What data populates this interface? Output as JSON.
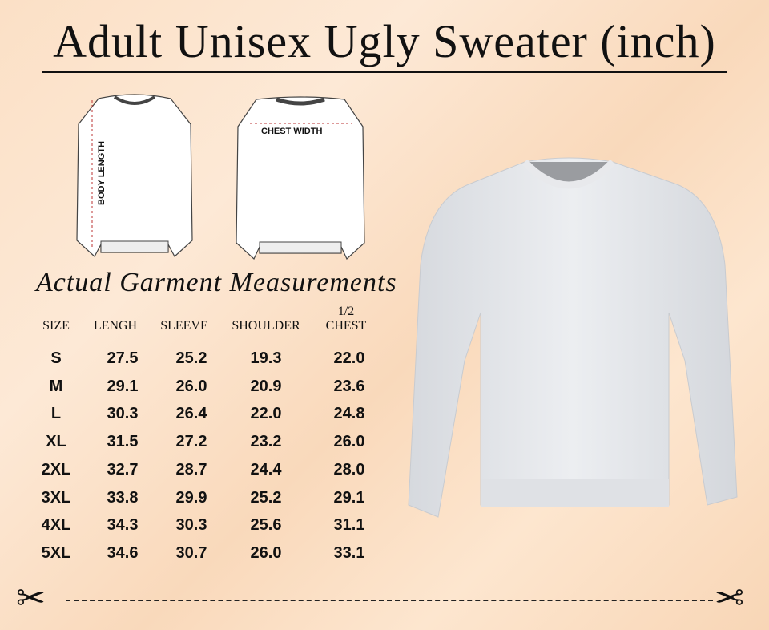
{
  "title": "Adult Unisex Ugly Sweater (inch)",
  "diagram": {
    "front_label": "BODY LENGTH",
    "back_label": "CHEST WIDTH"
  },
  "table": {
    "heading": "Actual Garment Measurements",
    "columns": [
      "SIZE",
      "LENGH",
      "SLEEVE",
      "SHOULDER",
      "1/2",
      "CHEST"
    ],
    "rows": [
      [
        "S",
        "27.5",
        "25.2",
        "19.3",
        "22.0"
      ],
      [
        "M",
        "29.1",
        "26.0",
        "20.9",
        "23.6"
      ],
      [
        "L",
        "30.3",
        "26.4",
        "22.0",
        "24.8"
      ],
      [
        "XL",
        "31.5",
        "27.2",
        "23.2",
        "26.0"
      ],
      [
        "2XL",
        "32.7",
        "28.7",
        "24.4",
        "28.0"
      ],
      [
        "3XL",
        "33.8",
        "29.9",
        "25.2",
        "29.1"
      ],
      [
        "4XL",
        "34.3",
        "30.3",
        "25.6",
        "31.1"
      ],
      [
        "5XL",
        "34.6",
        "30.7",
        "26.0",
        "33.1"
      ]
    ]
  },
  "icons": [
    "scissors-icon",
    "scissors-icon"
  ],
  "colors": {
    "background": "#fbe0c6",
    "sweater": "#e4e6ea",
    "text": "#111111"
  }
}
